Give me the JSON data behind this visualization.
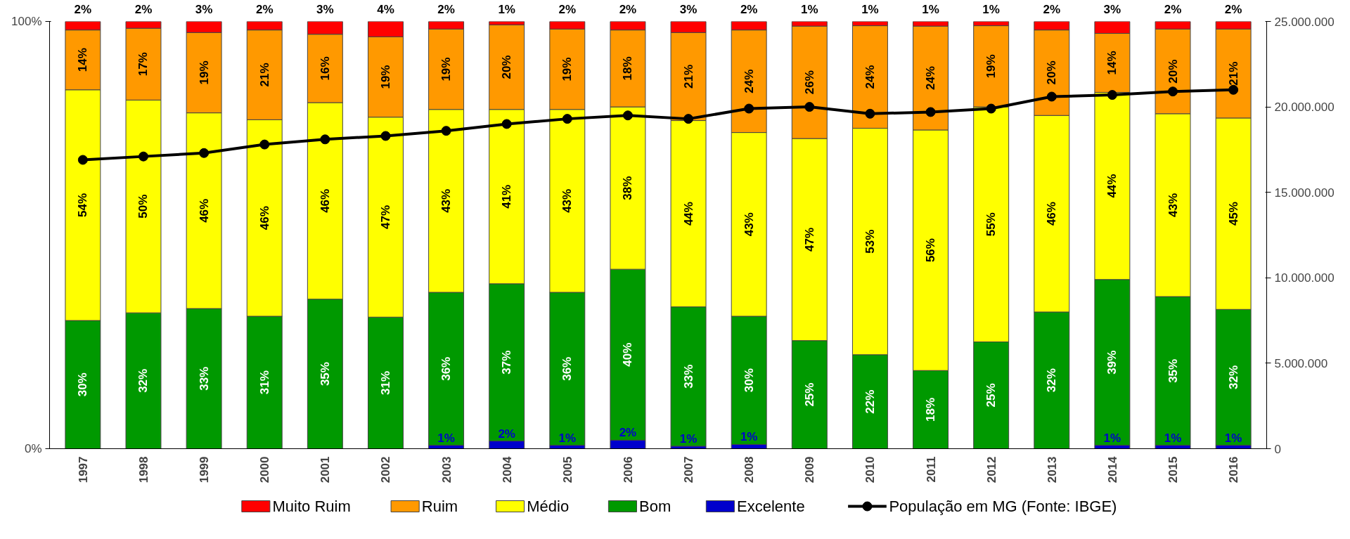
{
  "chart_data": {
    "type": "bar",
    "stacked": true,
    "legend": "bottom",
    "marker": "circle",
    "categories": [
      "1997",
      "1998",
      "1999",
      "2000",
      "2001",
      "2002",
      "2003",
      "2004",
      "2005",
      "2006",
      "2007",
      "2008",
      "2009",
      "2010",
      "2011",
      "2012",
      "2013",
      "2014",
      "2015",
      "2016"
    ],
    "ylim": [
      0,
      100
    ],
    "yticks": [
      {
        "value": 0,
        "label": "0%"
      },
      {
        "value": 100,
        "label": "100%"
      }
    ],
    "y2lim": [
      0,
      25000000
    ],
    "y2ticks": [
      0,
      {
        "value": 5000000,
        "label": "5.000.000"
      },
      {
        "value": 10000000,
        "label": "10.000.000"
      },
      {
        "value": 15000000,
        "label": "15.000.000"
      },
      {
        "value": 20000000,
        "label": "20.000.000"
      },
      {
        "value": 25000000,
        "label": "25.000.000"
      }
    ],
    "series": [
      {
        "name": "Excelente",
        "color": "#0000cc",
        "values": [
          null,
          null,
          null,
          null,
          null,
          null,
          0.8,
          1.8,
          0.8,
          2,
          0.6,
          1,
          null,
          null,
          null,
          null,
          null,
          0.8,
          0.8,
          0.8
        ],
        "value_labels": [
          null,
          null,
          null,
          null,
          null,
          null,
          "1%",
          "2%",
          "1%",
          "2%",
          "1%",
          "1%",
          null,
          null,
          null,
          null,
          null,
          "1%",
          "1%",
          "1%"
        ]
      },
      {
        "name": "Bom",
        "color": "#009900",
        "values": [
          30,
          31.8,
          32.8,
          31,
          35,
          30.8,
          35.8,
          36.8,
          35.8,
          40,
          32.6,
          30,
          25.3,
          22,
          18.3,
          25,
          32,
          38.8,
          34.8,
          31.8
        ],
        "value_labels": [
          "30%",
          "32%",
          "33%",
          "31%",
          "35%",
          "31%",
          "36%",
          "37%",
          "36%",
          "40%",
          "33%",
          "30%",
          "25%",
          "22%",
          "18%",
          "25%",
          "32%",
          "39%",
          "35%",
          "32%"
        ]
      },
      {
        "name": "Médio",
        "color": "#ffff00",
        "values": [
          54,
          49.8,
          45.8,
          46,
          46,
          46.8,
          42.8,
          40.8,
          42.8,
          38,
          43.6,
          43,
          47.3,
          53,
          56.3,
          55,
          46,
          43.8,
          42.8,
          44.8
        ],
        "value_labels": [
          "54%",
          "50%",
          "46%",
          "46%",
          "46%",
          "47%",
          "43%",
          "41%",
          "43%",
          "38%",
          "44%",
          "43%",
          "47%",
          "53%",
          "56%",
          "55%",
          "46%",
          "44%",
          "43%",
          "45%"
        ]
      },
      {
        "name": "Ruim",
        "color": "#ff9900",
        "values": [
          14,
          16.8,
          18.8,
          21,
          16,
          18.8,
          18.8,
          19.8,
          18.8,
          18,
          20.6,
          24,
          26.3,
          24,
          24.3,
          19,
          20,
          13.8,
          19.8,
          20.8
        ],
        "value_labels": [
          "14%",
          "17%",
          "19%",
          "21%",
          "16%",
          "19%",
          "19%",
          "20%",
          "19%",
          "18%",
          "21%",
          "24%",
          "26%",
          "24%",
          "24%",
          "19%",
          "20%",
          "14%",
          "20%",
          "21%"
        ]
      },
      {
        "name": "Muito Ruim",
        "color": "#ff0000",
        "values": [
          2,
          1.6,
          2.6,
          2,
          3,
          3.6,
          1.8,
          0.8,
          1.8,
          2,
          2.6,
          2,
          1.1,
          1,
          1.1,
          1,
          2,
          2.8,
          1.8,
          1.8
        ],
        "value_labels": [
          "2%",
          "2%",
          "3%",
          "2%",
          "3%",
          "4%",
          "2%",
          "1%",
          "2%",
          "2%",
          "3%",
          "2%",
          "1%",
          "1%",
          "1%",
          "1%",
          "2%",
          "3%",
          "2%",
          "2%"
        ]
      },
      {
        "name": "População em MG (Fonte: IBGE)",
        "type": "line",
        "axis": "y2",
        "color": "#000000",
        "values": [
          16900000,
          17100000,
          17300000,
          17800000,
          18100000,
          18300000,
          18600000,
          19000000,
          19300000,
          19500000,
          19300000,
          19900000,
          20000000,
          19600000,
          19700000,
          19900000,
          20600000,
          20700000,
          20900000,
          21000000
        ]
      }
    ]
  }
}
